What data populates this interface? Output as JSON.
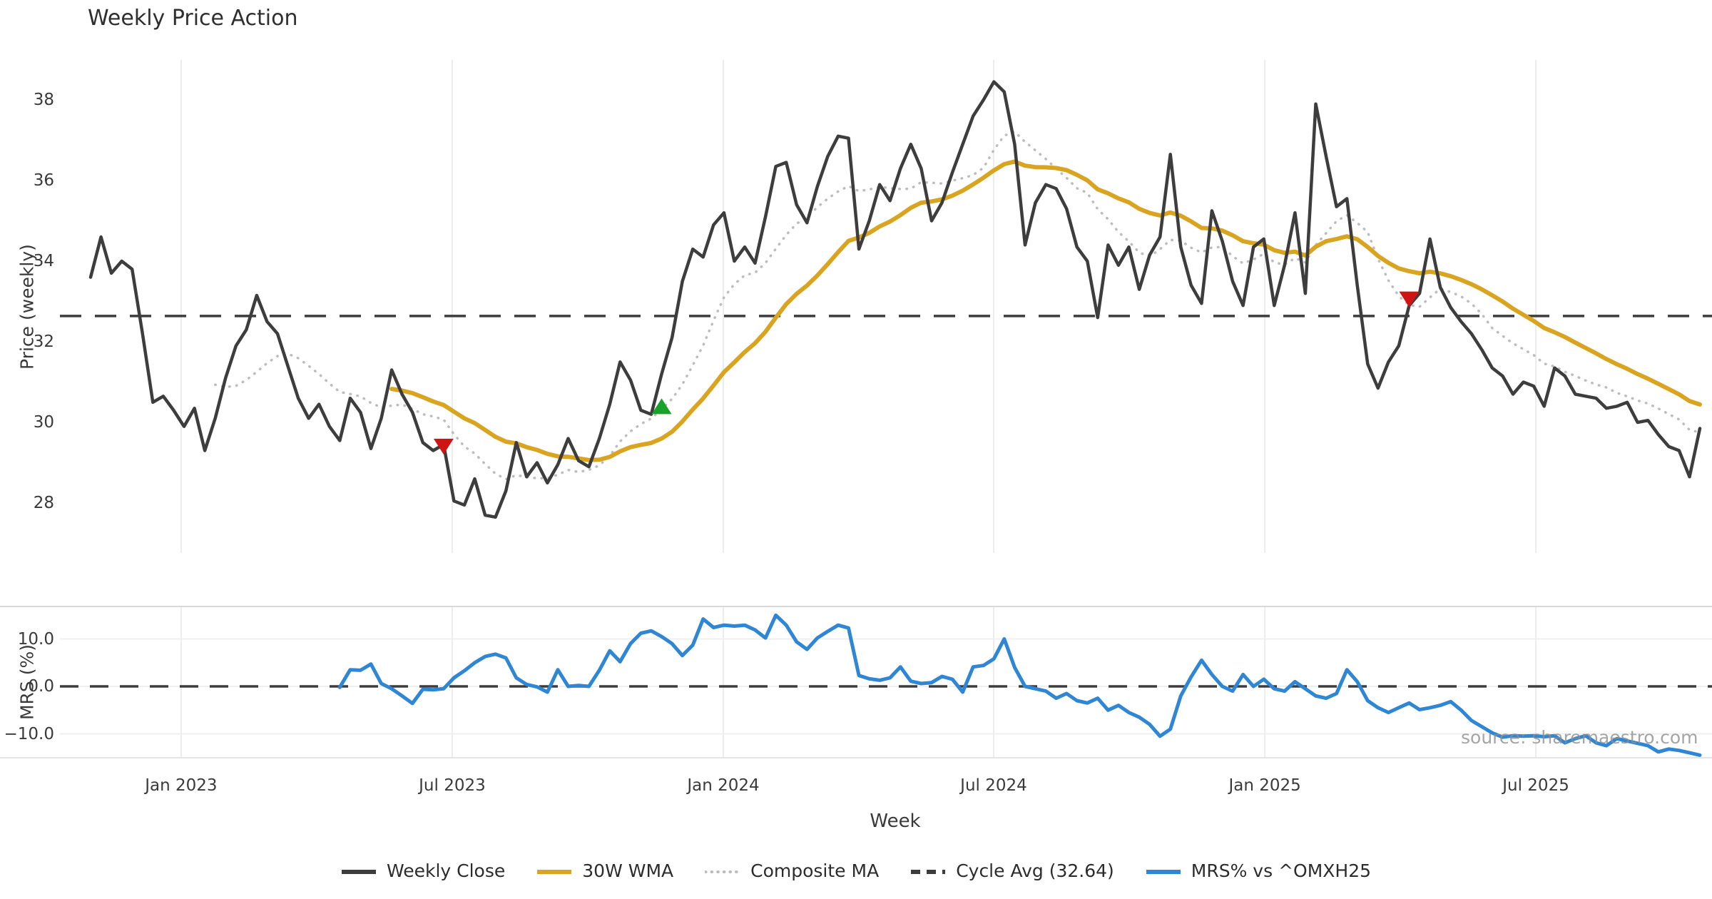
{
  "title": "Weekly Price Action",
  "watermark": "source: sharemaestro.com",
  "colors": {
    "weekly_close": "#3d3d3d",
    "wma": "#d9a420",
    "composite": "#bdbdbd",
    "cycle_avg": "#3d3d3d",
    "mrs": "#2e86d5",
    "sell_marker": "#cf1512",
    "buy_marker": "#17a32b",
    "grid": "#ececec",
    "spine": "#d9d9d9",
    "tick_text": "#3a3a3a"
  },
  "x_axis": {
    "label": "Week",
    "ticks": [
      {
        "label": "Jan 2023",
        "week": 8.72
      },
      {
        "label": "Jul 2023",
        "week": 34.83
      },
      {
        "label": "Jan 2024",
        "week": 60.94
      },
      {
        "label": "Jul 2024",
        "week": 86.98
      },
      {
        "label": "Jan 2025",
        "week": 113.1
      },
      {
        "label": "Jul 2025",
        "week": 139.2
      }
    ]
  },
  "legend": [
    {
      "label": "Weekly Close",
      "style": "solid",
      "color": "#3d3d3d"
    },
    {
      "label": "30W WMA",
      "style": "solid",
      "color": "#d9a420"
    },
    {
      "label": "Composite MA",
      "style": "dotted",
      "color": "#bdbdbd"
    },
    {
      "label": "Cycle Avg (32.64)",
      "style": "dashed",
      "color": "#3d3d3d"
    },
    {
      "label": "MRS% vs ^OMXH25",
      "style": "solid",
      "color": "#2e86d5"
    }
  ],
  "chart_data": [
    {
      "type": "line",
      "panel": "price",
      "title": "Weekly Price Action",
      "ylabel": "Price (weekly)",
      "ylim": [
        26.8,
        39.0
      ],
      "grid": "vertical-only",
      "y_ticks": [
        {
          "label": "28",
          "value": 28
        },
        {
          "label": "30",
          "value": 30
        },
        {
          "label": "32",
          "value": 32
        },
        {
          "label": "34",
          "value": 34
        },
        {
          "label": "36",
          "value": 36
        },
        {
          "label": "38",
          "value": 38
        }
      ],
      "cycle_avg": 32.64,
      "series": [
        {
          "name": "Weekly Close",
          "style": "solid",
          "start_week": 0,
          "values": [
            33.6,
            34.6,
            33.7,
            34.0,
            33.8,
            32.2,
            30.5,
            30.65,
            30.3,
            29.9,
            30.35,
            29.3,
            30.1,
            31.1,
            31.9,
            32.3,
            33.15,
            32.5,
            32.2,
            31.4,
            30.6,
            30.1,
            30.45,
            29.9,
            29.55,
            30.6,
            30.25,
            29.35,
            30.1,
            31.3,
            30.7,
            30.25,
            29.5,
            29.3,
            29.45,
            28.05,
            27.95,
            28.6,
            27.7,
            27.65,
            28.3,
            29.5,
            28.65,
            29.0,
            28.5,
            28.95,
            29.6,
            29.05,
            28.9,
            29.6,
            30.45,
            31.5,
            31.05,
            30.3,
            30.2,
            31.2,
            32.1,
            33.5,
            34.3,
            34.1,
            34.9,
            35.2,
            34.0,
            34.35,
            33.95,
            35.1,
            36.35,
            36.45,
            35.4,
            34.95,
            35.85,
            36.6,
            37.1,
            37.05,
            34.3,
            35.0,
            35.9,
            35.5,
            36.3,
            36.9,
            36.3,
            35.0,
            35.45,
            36.2,
            36.9,
            37.6,
            38.0,
            38.45,
            38.2,
            36.9,
            34.4,
            35.45,
            35.9,
            35.8,
            35.3,
            34.35,
            34.0,
            32.6,
            34.4,
            33.9,
            34.35,
            33.3,
            34.15,
            34.6,
            36.65,
            34.35,
            33.4,
            32.95,
            35.25,
            34.5,
            33.5,
            32.9,
            34.35,
            34.55,
            32.9,
            33.9,
            35.2,
            33.2,
            37.9,
            36.6,
            35.35,
            35.55,
            33.4,
            31.45,
            30.85,
            31.5,
            31.9,
            32.9,
            33.2,
            34.55,
            33.35,
            32.85,
            32.5,
            32.2,
            31.8,
            31.35,
            31.15,
            30.7,
            31.0,
            30.9,
            30.4,
            31.35,
            31.15,
            30.7,
            30.65,
            30.6,
            30.35,
            30.4,
            30.5,
            30.0,
            30.05,
            29.7,
            29.4,
            29.3,
            28.65,
            29.85
          ]
        },
        {
          "name": "30W WMA",
          "style": "solid",
          "derived": "weighted_ma_30_of_weekly_close"
        },
        {
          "name": "Composite MA",
          "style": "dotted",
          "derived": "mean_of_sma6_sma13_of_weekly_close"
        },
        {
          "name": "Cycle Avg (32.64)",
          "style": "dashed",
          "constant": 32.64
        }
      ],
      "markers": {
        "sell": [
          {
            "week": 34,
            "value": 29.4
          },
          {
            "week": 127,
            "value": 33.05
          }
        ],
        "buy": [
          {
            "week": 55,
            "value": 30.4
          }
        ]
      }
    },
    {
      "type": "line",
      "panel": "mrs",
      "ylabel": "MRS (%)",
      "ylim": [
        -15.0,
        16.8
      ],
      "zero_line": 0.0,
      "y_ticks": [
        {
          "label": "10.0",
          "value": 10
        },
        {
          "label": "0.0",
          "value": 0
        },
        {
          "label": "−10.0",
          "value": -10
        }
      ],
      "series": [
        {
          "name": "MRS% vs ^OMXH25",
          "style": "solid",
          "start_week": 24,
          "values": [
            -0.2,
            3.5,
            3.4,
            4.7,
            0.6,
            -0.5,
            -2.0,
            -3.6,
            -0.6,
            -0.7,
            -0.5,
            1.8,
            3.3,
            5.0,
            6.3,
            6.8,
            6.0,
            1.8,
            0.4,
            -0.1,
            -1.2,
            3.5,
            0.0,
            0.2,
            0.0,
            3.4,
            7.5,
            5.2,
            9.0,
            11.2,
            11.7,
            10.5,
            9.0,
            6.5,
            8.7,
            14.2,
            12.4,
            12.9,
            12.7,
            12.9,
            11.9,
            10.2,
            15.0,
            12.9,
            9.4,
            7.8,
            10.2,
            11.6,
            12.9,
            12.3,
            2.3,
            1.6,
            1.3,
            1.8,
            4.1,
            1.1,
            0.6,
            0.8,
            2.1,
            1.5,
            -1.2,
            4.1,
            4.4,
            5.8,
            10.0,
            4.0,
            0.0,
            -0.5,
            -1.0,
            -2.5,
            -1.5,
            -3.0,
            -3.5,
            -2.5,
            -5.0,
            -4.0,
            -5.5,
            -6.5,
            -8.0,
            -10.5,
            -9.0,
            -2.0,
            2.0,
            5.5,
            2.5,
            0.0,
            -1.0,
            2.5,
            0.0,
            1.5,
            -0.5,
            -1.0,
            1.0,
            -0.5,
            -2.0,
            -2.5,
            -1.5,
            3.5,
            1.0,
            -3.0,
            -4.5,
            -5.5,
            -4.5,
            -3.5,
            -4.9,
            -4.5,
            -4.0,
            -3.2,
            -5.0,
            -7.2,
            -8.5,
            -9.8,
            -10.7,
            -10.4,
            -10.5,
            -10.4,
            -10.6,
            -10.4,
            -11.9,
            -11.0,
            -10.4,
            -11.9,
            -12.5,
            -11.0,
            -11.5,
            -12.0,
            -12.5,
            -13.8,
            -13.2,
            -13.5,
            -14.0,
            -14.5
          ]
        }
      ]
    }
  ]
}
